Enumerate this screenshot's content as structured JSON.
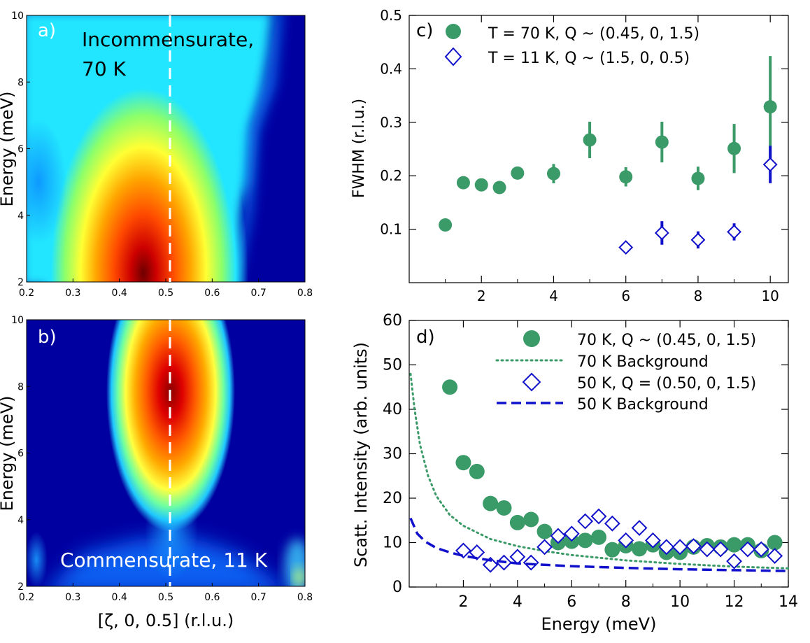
{
  "chart_data": [
    {
      "panel": "a",
      "type": "heatmap",
      "panel_label": "a)",
      "annotation": [
        "Incommensurate,",
        "70 K"
      ],
      "ylabel": "Energy (meV)",
      "xlim": [
        0.2,
        0.8
      ],
      "ylim": [
        2,
        10
      ],
      "x_ticks": [
        "0.2",
        "0.3",
        "0.4",
        "0.5",
        "0.6",
        "0.7",
        "0.8"
      ],
      "y_ticks": [
        "2",
        "4",
        "6",
        "8",
        "10"
      ],
      "reference_line_x": 0.5,
      "peak": {
        "x_center": 0.44,
        "energy_max_intensity": 2,
        "tail_to_energy": 10
      }
    },
    {
      "panel": "b",
      "type": "heatmap",
      "panel_label": "b)",
      "annotation": [
        "Commensurate, 11 K"
      ],
      "xlabel": "[ζ, 0, 0.5] (r.l.u.)",
      "ylabel": "Energy (meV)",
      "xlim": [
        0.2,
        0.8
      ],
      "ylim": [
        2,
        10
      ],
      "x_ticks": [
        "0.2",
        "0.3",
        "0.4",
        "0.5",
        "0.6",
        "0.7",
        "0.8"
      ],
      "y_ticks": [
        "2",
        "4",
        "6",
        "8",
        "10"
      ],
      "reference_line_x": 0.5,
      "peak": {
        "x_center": 0.5,
        "energy_max_intensity": 8.5,
        "fades_below": 4.5
      }
    },
    {
      "panel": "c",
      "type": "scatter",
      "panel_label": "c)",
      "ylabel": "FWHM (r.l.u.)",
      "xlim": [
        0,
        10.5
      ],
      "ylim": [
        0,
        0.5
      ],
      "x_ticks": [
        2,
        4,
        6,
        8,
        10
      ],
      "y_ticks": [
        0.1,
        0.2,
        0.3,
        0.4,
        0.5
      ],
      "legend_position": "top",
      "series": [
        {
          "name": "T = 70 K, Q ~ (0.45, 0, 1.5)",
          "marker": "circle",
          "color": "#3a9a68",
          "points": [
            {
              "x": 1,
              "y": 0.108,
              "err": 0.006
            },
            {
              "x": 1.5,
              "y": 0.187,
              "err": 0.01
            },
            {
              "x": 2,
              "y": 0.183,
              "err": 0.01
            },
            {
              "x": 2.5,
              "y": 0.178,
              "err": 0.01
            },
            {
              "x": 3,
              "y": 0.205,
              "err": 0.01
            },
            {
              "x": 4,
              "y": 0.204,
              "err": 0.018
            },
            {
              "x": 5,
              "y": 0.267,
              "err": 0.034
            },
            {
              "x": 6,
              "y": 0.198,
              "err": 0.018
            },
            {
              "x": 7,
              "y": 0.263,
              "err": 0.038
            },
            {
              "x": 8,
              "y": 0.195,
              "err": 0.022
            },
            {
              "x": 9,
              "y": 0.251,
              "err": 0.046
            },
            {
              "x": 10,
              "y": 0.329,
              "err": 0.095
            }
          ]
        },
        {
          "name": "T = 11 K, Q ~ (1.5, 0, 0.5)",
          "marker": "diamond",
          "color": "#1111cc",
          "points": [
            {
              "x": 6,
              "y": 0.066,
              "err": 0.006
            },
            {
              "x": 7,
              "y": 0.093,
              "err": 0.022
            },
            {
              "x": 8,
              "y": 0.08,
              "err": 0.016
            },
            {
              "x": 9,
              "y": 0.095,
              "err": 0.016
            },
            {
              "x": 10,
              "y": 0.221,
              "err": 0.035
            }
          ]
        }
      ]
    },
    {
      "panel": "d",
      "type": "scatter",
      "panel_label": "d)",
      "xlabel": "Energy (meV)",
      "ylabel": "Scatt. Intensity (arb. units)",
      "xlim": [
        0,
        14
      ],
      "ylim": [
        0,
        60
      ],
      "x_ticks": [
        2,
        4,
        6,
        8,
        10,
        12,
        14
      ],
      "y_ticks": [
        0,
        10,
        20,
        30,
        40,
        50,
        60
      ],
      "legend_position": "top-right",
      "series": [
        {
          "name": "70 K, Q ~ (0.45, 0, 1.5)",
          "marker": "circle",
          "color": "#3a9a68",
          "points": [
            {
              "x": 1.5,
              "y": 45,
              "err": 1.6
            },
            {
              "x": 2,
              "y": 28
            },
            {
              "x": 2.5,
              "y": 26
            },
            {
              "x": 3,
              "y": 18.8
            },
            {
              "x": 3.5,
              "y": 17.8
            },
            {
              "x": 4,
              "y": 14.5
            },
            {
              "x": 4.5,
              "y": 15.2
            },
            {
              "x": 5,
              "y": 12.5
            },
            {
              "x": 5.5,
              "y": 10
            },
            {
              "x": 6,
              "y": 10.3
            },
            {
              "x": 6.5,
              "y": 10.5
            },
            {
              "x": 7,
              "y": 11.2
            },
            {
              "x": 7.5,
              "y": 8.4
            },
            {
              "x": 8,
              "y": 9.3
            },
            {
              "x": 8.5,
              "y": 8.6
            },
            {
              "x": 9,
              "y": 9.5
            },
            {
              "x": 9.5,
              "y": 7.8
            },
            {
              "x": 10,
              "y": 7.8
            },
            {
              "x": 10.5,
              "y": 9
            },
            {
              "x": 11,
              "y": 9.3
            },
            {
              "x": 11.5,
              "y": 9
            },
            {
              "x": 12,
              "y": 9.5
            },
            {
              "x": 12.5,
              "y": 9.5
            },
            {
              "x": 13,
              "y": 8.2
            },
            {
              "x": 13.5,
              "y": 10
            }
          ]
        },
        {
          "name": "70 K Background",
          "style": "dotted",
          "color": "#3a9a68",
          "points": [
            {
              "x": 0.05,
              "y": 48
            },
            {
              "x": 0.2,
              "y": 40
            },
            {
              "x": 0.4,
              "y": 32
            },
            {
              "x": 0.7,
              "y": 25
            },
            {
              "x": 1,
              "y": 20.5
            },
            {
              "x": 1.5,
              "y": 16.2
            },
            {
              "x": 2,
              "y": 13.8
            },
            {
              "x": 3,
              "y": 10.8
            },
            {
              "x": 4,
              "y": 9.2
            },
            {
              "x": 5,
              "y": 8.1
            },
            {
              "x": 6,
              "y": 7.2
            },
            {
              "x": 8,
              "y": 6
            },
            {
              "x": 10,
              "y": 5.2
            },
            {
              "x": 12,
              "y": 4.6
            },
            {
              "x": 14,
              "y": 4.2
            }
          ]
        },
        {
          "name": "50 K, Q = (0.50, 0, 1.5)",
          "marker": "diamond",
          "color": "#1111cc",
          "points": [
            {
              "x": 2,
              "y": 8.2
            },
            {
              "x": 2.5,
              "y": 7.8
            },
            {
              "x": 3,
              "y": 5
            },
            {
              "x": 3.5,
              "y": 5.5
            },
            {
              "x": 4,
              "y": 6.8
            },
            {
              "x": 4.5,
              "y": 5.5
            },
            {
              "x": 5,
              "y": 9
            },
            {
              "x": 5.5,
              "y": 11.5
            },
            {
              "x": 6,
              "y": 12
            },
            {
              "x": 6.5,
              "y": 14.8
            },
            {
              "x": 7,
              "y": 15.9
            },
            {
              "x": 7.5,
              "y": 14.3
            },
            {
              "x": 8,
              "y": 10.5
            },
            {
              "x": 8.5,
              "y": 13.3
            },
            {
              "x": 9,
              "y": 10.5
            },
            {
              "x": 9.5,
              "y": 9
            },
            {
              "x": 10,
              "y": 9
            },
            {
              "x": 10.5,
              "y": 9.2
            },
            {
              "x": 11,
              "y": 8.5
            },
            {
              "x": 11.5,
              "y": 8.5
            },
            {
              "x": 12,
              "y": 5.8
            },
            {
              "x": 12.5,
              "y": 8.5
            },
            {
              "x": 13,
              "y": 8.5
            },
            {
              "x": 13.5,
              "y": 7
            }
          ]
        },
        {
          "name": "50 K Background",
          "style": "dashed",
          "color": "#1111cc",
          "points": [
            {
              "x": 0.05,
              "y": 15.5
            },
            {
              "x": 0.3,
              "y": 12
            },
            {
              "x": 0.6,
              "y": 10.2
            },
            {
              "x": 1,
              "y": 8.8
            },
            {
              "x": 1.5,
              "y": 7.8
            },
            {
              "x": 2,
              "y": 7
            },
            {
              "x": 3,
              "y": 6
            },
            {
              "x": 4,
              "y": 5.3
            },
            {
              "x": 6,
              "y": 4.7
            },
            {
              "x": 8,
              "y": 4.3
            },
            {
              "x": 10,
              "y": 4
            },
            {
              "x": 12,
              "y": 3.8
            },
            {
              "x": 14,
              "y": 3.6
            }
          ]
        }
      ]
    }
  ]
}
